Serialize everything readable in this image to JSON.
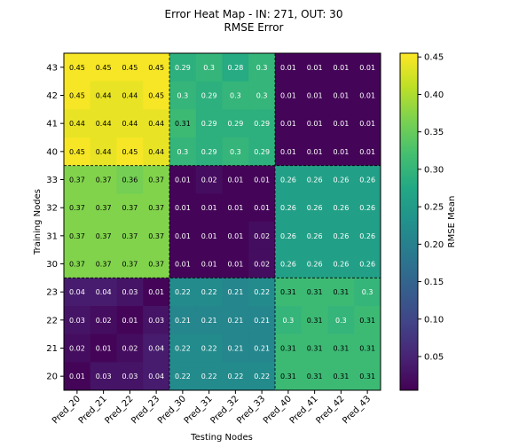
{
  "chart_data": {
    "type": "heatmap",
    "title": "Error Heat Map - IN: 271, OUT: 30",
    "subtitle": "RMSE Error",
    "xlabel": "Testing Nodes",
    "ylabel": "Training Nodes",
    "x_categories": [
      "Pred_20",
      "Pred_21",
      "Pred_22",
      "Pred_23",
      "Pred_30",
      "Pred_31",
      "Pred_32",
      "Pred_33",
      "Pred_40",
      "Pred_41",
      "Pred_42",
      "Pred_43"
    ],
    "y_categories": [
      "43",
      "42",
      "41",
      "40",
      "33",
      "32",
      "31",
      "30",
      "23",
      "22",
      "21",
      "20"
    ],
    "values": [
      [
        0.45,
        0.45,
        0.45,
        0.45,
        0.29,
        0.3,
        0.28,
        0.3,
        0.01,
        0.01,
        0.01,
        0.01
      ],
      [
        0.45,
        0.44,
        0.44,
        0.45,
        0.3,
        0.29,
        0.3,
        0.3,
        0.01,
        0.01,
        0.01,
        0.01
      ],
      [
        0.44,
        0.44,
        0.44,
        0.44,
        0.31,
        0.29,
        0.29,
        0.29,
        0.01,
        0.01,
        0.01,
        0.01
      ],
      [
        0.45,
        0.44,
        0.45,
        0.44,
        0.3,
        0.29,
        0.3,
        0.29,
        0.01,
        0.01,
        0.01,
        0.01
      ],
      [
        0.37,
        0.37,
        0.36,
        0.37,
        0.01,
        0.02,
        0.01,
        0.01,
        0.26,
        0.26,
        0.26,
        0.26
      ],
      [
        0.37,
        0.37,
        0.37,
        0.37,
        0.01,
        0.01,
        0.01,
        0.01,
        0.26,
        0.26,
        0.26,
        0.26
      ],
      [
        0.37,
        0.37,
        0.37,
        0.37,
        0.01,
        0.01,
        0.01,
        0.02,
        0.26,
        0.26,
        0.26,
        0.26
      ],
      [
        0.37,
        0.37,
        0.37,
        0.37,
        0.01,
        0.01,
        0.01,
        0.02,
        0.26,
        0.26,
        0.26,
        0.26
      ],
      [
        0.04,
        0.04,
        0.03,
        0.01,
        0.22,
        0.22,
        0.21,
        0.22,
        0.31,
        0.31,
        0.31,
        0.3
      ],
      [
        0.03,
        0.02,
        0.01,
        0.03,
        0.21,
        0.21,
        0.21,
        0.21,
        0.3,
        0.31,
        0.3,
        0.31
      ],
      [
        0.02,
        0.01,
        0.02,
        0.04,
        0.22,
        0.22,
        0.21,
        0.21,
        0.31,
        0.31,
        0.31,
        0.31
      ],
      [
        0.01,
        0.03,
        0.03,
        0.04,
        0.22,
        0.22,
        0.22,
        0.22,
        0.31,
        0.31,
        0.31,
        0.31
      ]
    ],
    "colorbar": {
      "label": "RMSE Mean",
      "colormap": "viridis",
      "range": [
        0.005,
        0.455
      ],
      "ticks": [
        "0.05",
        "0.10",
        "0.15",
        "0.20",
        "0.25",
        "0.30",
        "0.35",
        "0.40",
        "0.45"
      ]
    },
    "block_size": 4,
    "grid": false
  }
}
